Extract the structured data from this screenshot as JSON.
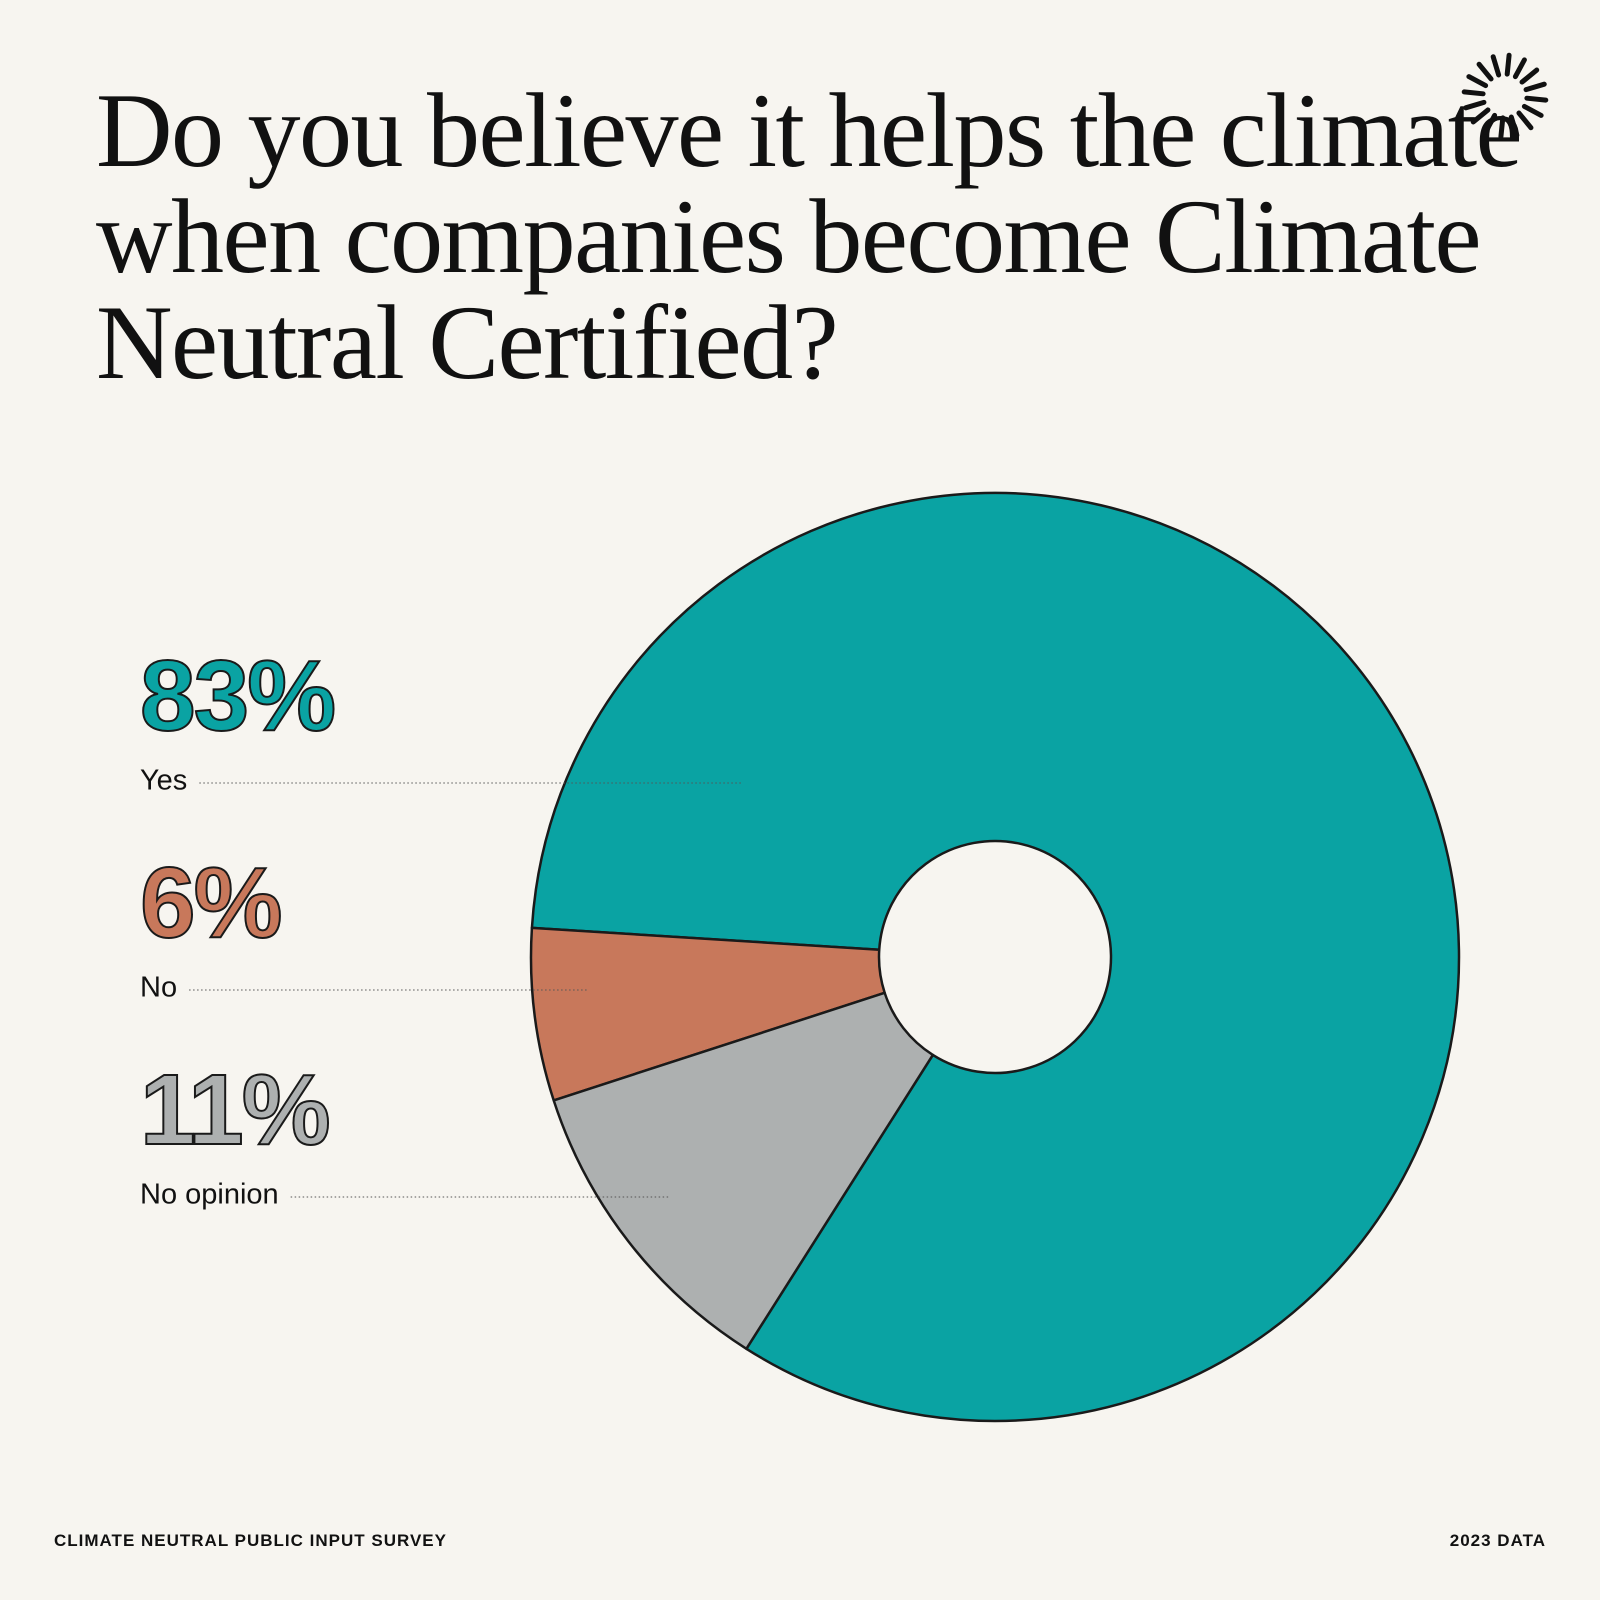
{
  "chart_data": {
    "type": "pie",
    "title": "Do you believe it helps the climate when companies become Climate Neutral Certified?",
    "categories": [
      "Yes",
      "No",
      "No opinion"
    ],
    "values": [
      83,
      6,
      11
    ],
    "value_labels": [
      "83%",
      "6%",
      "11%"
    ],
    "colors": [
      "#0aa3a3",
      "#c8785b",
      "#adb0b0"
    ],
    "source": "CLIMATE NEUTRAL PUBLIC INPUT SURVEY",
    "date_label": "2023 DATA"
  }
}
